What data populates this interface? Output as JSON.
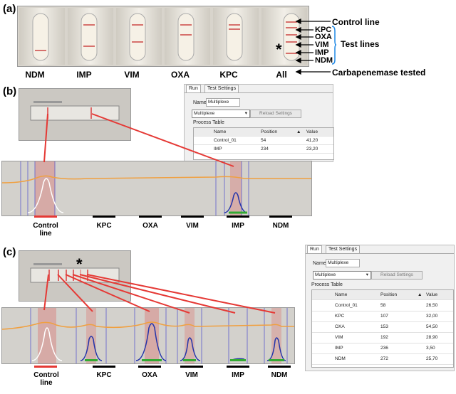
{
  "panel_a": {
    "label": "(a)",
    "cassettes": [
      "NDM",
      "IMP",
      "VIM",
      "OXA",
      "KPC",
      "All"
    ],
    "asterisk": "*",
    "side_labels": {
      "control": "Control line",
      "kpc": "KPC",
      "oxa": "OXA",
      "vim": "VIM",
      "imp": "IMP",
      "ndm": "NDM",
      "test_lines": "Test lines",
      "carbapenemase": "Carbapenemase tested"
    }
  },
  "panel_b": {
    "label": "(b)",
    "software": {
      "tab_run": "Run",
      "tab_settings": "Test Settings",
      "name_label": "Name:",
      "name_value": "Multiplexe",
      "select_value": "Multiplexe",
      "reload_button": "Reload Settings",
      "process_table_title": "Process Table",
      "columns": [
        "Name",
        "Position",
        "Value"
      ],
      "rows": [
        [
          "Control_01",
          "54",
          "41,20"
        ],
        [
          "IMP",
          "234",
          "23,20"
        ]
      ]
    },
    "lane_labels": [
      "Control line",
      "KPC",
      "OXA",
      "VIM",
      "IMP",
      "NDM"
    ]
  },
  "panel_c": {
    "label": "(c)",
    "asterisk": "*",
    "software": {
      "tab_run": "Run",
      "tab_settings": "Test Settings",
      "name_label": "Name:",
      "name_value": "Multiplexe",
      "select_value": "Multiplexe",
      "reload_button": "Reload Settings",
      "process_table_title": "Process Table",
      "columns": [
        "Name",
        "Position",
        "Value"
      ],
      "rows": [
        [
          "Control_01",
          "58",
          "26,50"
        ],
        [
          "KPC",
          "107",
          "32,00"
        ],
        [
          "OXA",
          "153",
          "54,50"
        ],
        [
          "VIM",
          "192",
          "28,90"
        ],
        [
          "IMP",
          "236",
          "3,50"
        ],
        [
          "NDM",
          "272",
          "25,70"
        ]
      ]
    },
    "lane_labels": [
      "Control line",
      "KPC",
      "OXA",
      "VIM",
      "IMP",
      "NDM"
    ]
  },
  "colors": {
    "control_bar": "#e53935",
    "lane_bar": "#000000",
    "connector": "#e53935",
    "photo_bg": "#c9c7c3"
  }
}
